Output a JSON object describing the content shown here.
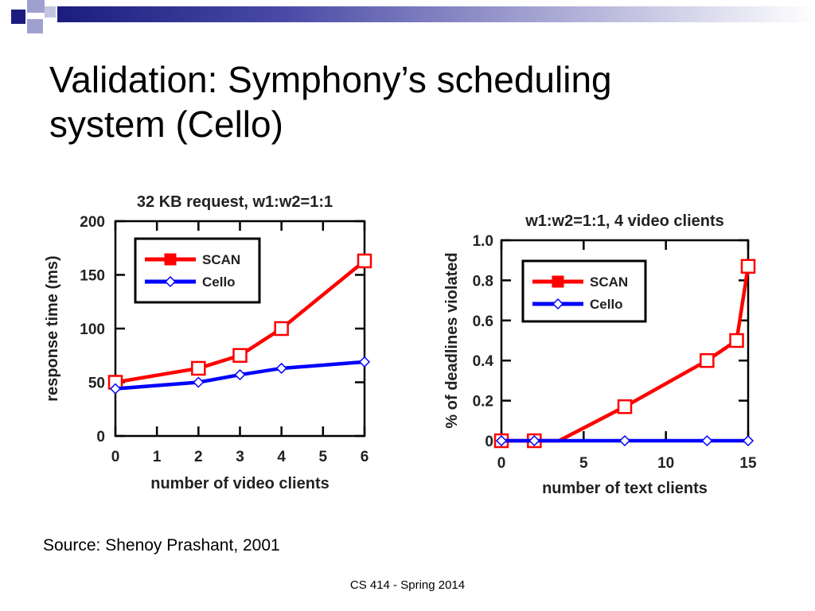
{
  "slide": {
    "title_line1": "Validation: Symphony’s scheduling",
    "title_line2": "system (Cello)",
    "source": "Source: Shenoy Prashant, 2001",
    "footer": "CS 414 - Spring 2014",
    "accent_colors": {
      "dark_blue": "#1c1c80",
      "light_blue": "#a0a0d0"
    }
  },
  "chart_data": [
    {
      "type": "line",
      "title": "32 KB request, w1:w2=1:1",
      "xlabel": "number of video clients",
      "ylabel": "response time (ms)",
      "xlim": [
        0,
        6
      ],
      "ylim": [
        0,
        200
      ],
      "xticks": [
        0,
        1,
        2,
        3,
        4,
        5,
        6
      ],
      "yticks": [
        0,
        50,
        100,
        150,
        200
      ],
      "legend": "top-left",
      "grid": false,
      "series": [
        {
          "name": "SCAN",
          "color": "#ff0000",
          "marker": "square",
          "x": [
            0,
            2,
            3,
            4,
            6
          ],
          "y": [
            50,
            63,
            75,
            100,
            163
          ]
        },
        {
          "name": "Cello",
          "color": "#0000ff",
          "marker": "diamond",
          "x": [
            0,
            2,
            3,
            4,
            6
          ],
          "y": [
            44,
            50,
            57,
            63,
            69
          ]
        }
      ]
    },
    {
      "type": "line",
      "title": "w1:w2=1:1, 4 video clients",
      "xlabel": "number of text clients",
      "ylabel": "% of deadlines violated",
      "xlim": [
        0,
        15
      ],
      "ylim": [
        0,
        1.0
      ],
      "xticks": [
        0,
        5,
        10,
        15
      ],
      "yticks": [
        0,
        0.2,
        0.4,
        0.6,
        0.8,
        1.0
      ],
      "ytick_labels": [
        "0",
        "0.2",
        "0.4",
        "0.6",
        "0.8",
        "1.0"
      ],
      "legend": "top-left",
      "grid": false,
      "series": [
        {
          "name": "SCAN",
          "color": "#ff0000",
          "marker": "square",
          "x": [
            0,
            2,
            3.5,
            7.5,
            12.5,
            14.3,
            15
          ],
          "y": [
            0,
            0,
            0,
            0.17,
            0.4,
            0.5,
            0.87
          ],
          "marked": [
            true,
            true,
            false,
            true,
            true,
            true,
            true
          ]
        },
        {
          "name": "Cello",
          "color": "#0000ff",
          "marker": "diamond",
          "x": [
            0,
            2,
            7.5,
            12.5,
            15
          ],
          "y": [
            0,
            0,
            0,
            0,
            0
          ]
        }
      ]
    }
  ]
}
